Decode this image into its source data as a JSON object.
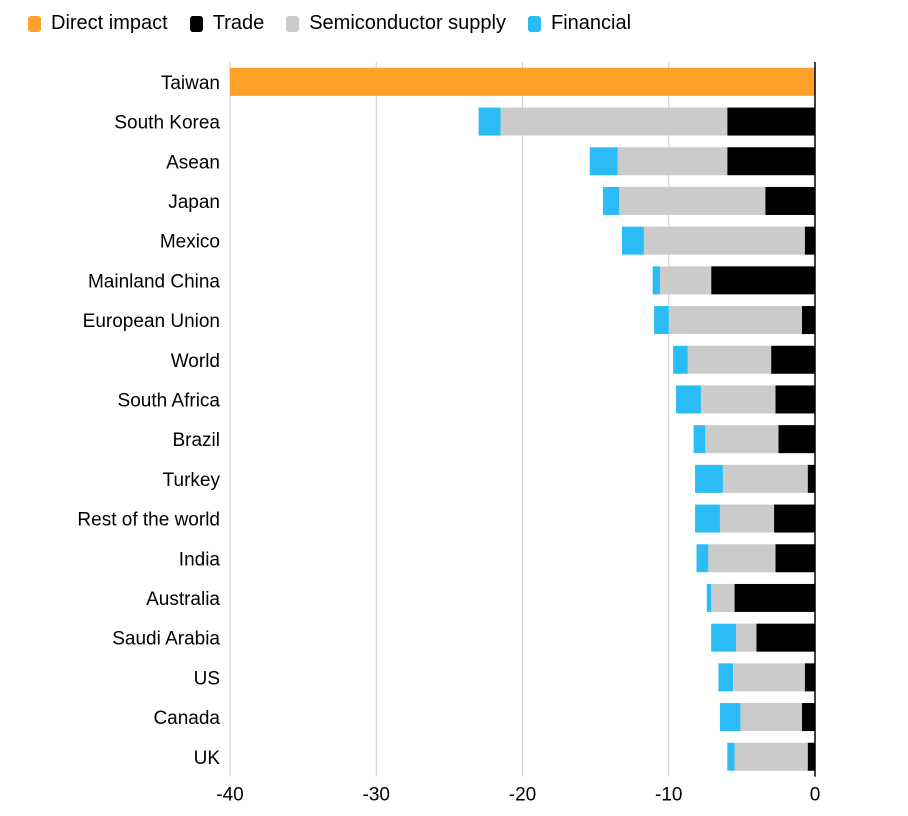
{
  "chart_data": {
    "type": "bar",
    "orientation": "horizontal",
    "stacked": true,
    "title": "",
    "xlabel": "",
    "ylabel": "",
    "xlim": [
      -40,
      0
    ],
    "xticks": [
      -40,
      -30,
      -20,
      -10,
      0
    ],
    "xtick_labels": [
      "-40",
      "-30",
      "-20",
      "-10",
      "0"
    ],
    "grid": true,
    "legend_position": "top-left",
    "categories": [
      "Taiwan",
      "South Korea",
      "Asean",
      "Japan",
      "Mexico",
      "Mainland China",
      "European Union",
      "World",
      "South Africa",
      "Brazil",
      "Turkey",
      "Rest of the world",
      "India",
      "Australia",
      "Saudi Arabia",
      "US",
      "Canada",
      "UK"
    ],
    "series": [
      {
        "name": "Direct impact",
        "color": "#ffa028",
        "values": [
          -40,
          0,
          0,
          0,
          0,
          0,
          0,
          0,
          0,
          0,
          0,
          0,
          0,
          0,
          0,
          0,
          0,
          0
        ]
      },
      {
        "name": "Trade",
        "color": "#000000",
        "values": [
          0,
          -6.0,
          -6.0,
          -3.4,
          -0.7,
          -7.1,
          -0.9,
          -3.0,
          -2.7,
          -2.5,
          -0.5,
          -2.8,
          -2.7,
          -5.5,
          -4.0,
          -0.7,
          -0.9,
          -0.5
        ]
      },
      {
        "name": "Semiconductor supply",
        "color": "#cbcbcb",
        "values": [
          0,
          -15.5,
          -7.5,
          -10.0,
          -11.0,
          -3.5,
          -9.1,
          -5.7,
          -5.1,
          -5.0,
          -5.8,
          -3.7,
          -4.6,
          -1.6,
          -1.4,
          -4.9,
          -4.2,
          -5.0
        ]
      },
      {
        "name": "Financial",
        "color": "#2bbcf6",
        "values": [
          0,
          -1.5,
          -1.9,
          -1.1,
          -1.5,
          -0.5,
          -1.0,
          -1.0,
          -1.7,
          -0.8,
          -1.9,
          -1.7,
          -0.8,
          -0.3,
          -1.7,
          -1.0,
          -1.4,
          -0.5
        ]
      }
    ]
  }
}
